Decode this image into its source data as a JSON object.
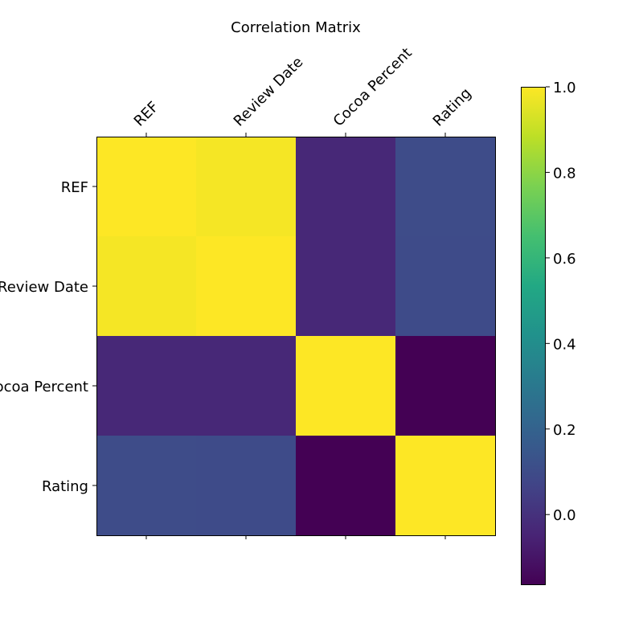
{
  "chart_data": {
    "type": "heatmap",
    "title": "Correlation Matrix",
    "x_categories": [
      "REF",
      "Review Date",
      "Cocoa Percent",
      "Rating"
    ],
    "y_categories": [
      "REF",
      "Review Date",
      "Cocoa Percent",
      "Rating"
    ],
    "values": [
      [
        1.0,
        0.985,
        -0.035,
        0.101
      ],
      [
        0.985,
        1.0,
        -0.035,
        0.1
      ],
      [
        -0.035,
        -0.035,
        1.0,
        -0.165
      ],
      [
        0.101,
        0.1,
        -0.165,
        1.0
      ]
    ],
    "colormap": "viridis",
    "vmin": -0.165,
    "vmax": 1.0,
    "colorbar": {
      "ticks": [
        0.0,
        0.2,
        0.4,
        0.6,
        0.8,
        1.0
      ],
      "tick_labels": [
        "0.0",
        "0.2",
        "0.4",
        "0.6",
        "0.8",
        "1.0"
      ],
      "placement": "right"
    },
    "x_tick_position": "top",
    "x_tick_rotation_deg": -45,
    "grid": false
  }
}
